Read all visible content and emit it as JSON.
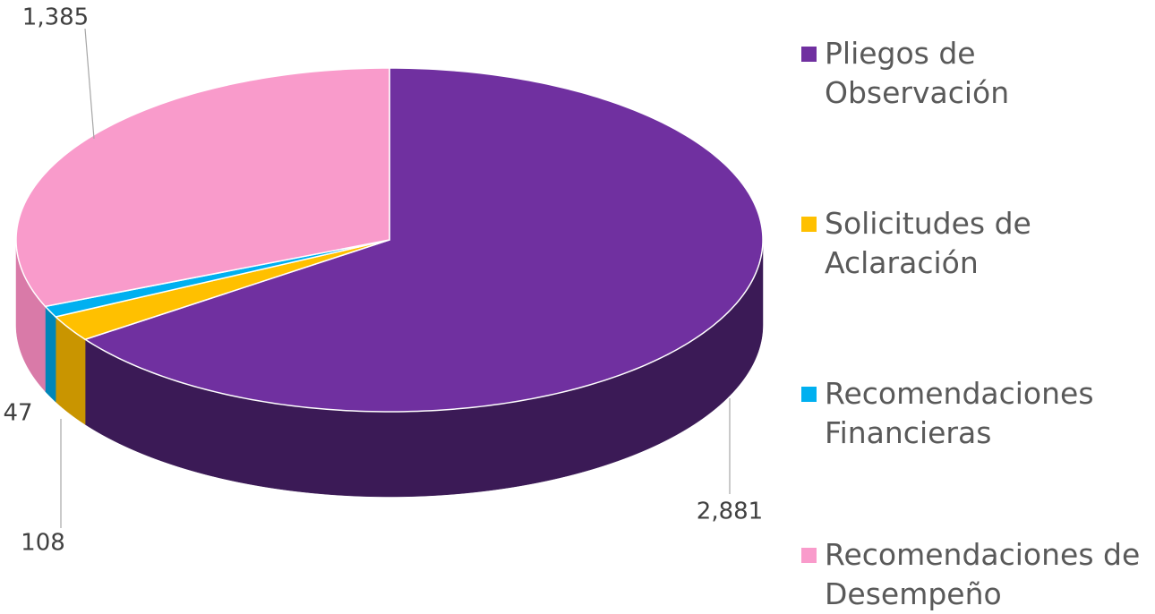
{
  "chart_data": {
    "type": "pie",
    "categories": [
      "Pliegos de Observación",
      "Solicitudes de Aclaración",
      "Recomendaciones Financieras",
      "Recomendaciones de Desempeño"
    ],
    "values": [
      2881,
      108,
      47,
      1385
    ],
    "value_labels": [
      "2,881",
      "108",
      "47",
      "1,385"
    ],
    "colors": [
      "#7030a0",
      "#ffc000",
      "#00b0f0",
      "#f99bcb"
    ],
    "side_colors": [
      "#3b1a56",
      "#c99500",
      "#0086b8",
      "#d97aa8"
    ],
    "legend": "right"
  }
}
